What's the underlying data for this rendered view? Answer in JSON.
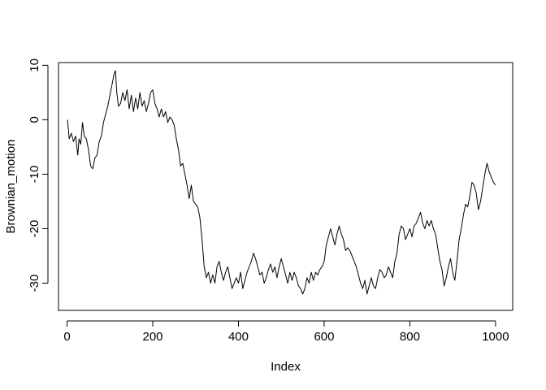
{
  "chart_data": {
    "type": "line",
    "title": "",
    "xlabel": "Index",
    "ylabel": "Brownian_motion",
    "xlim": [
      -20,
      1040
    ],
    "ylim": [
      -35,
      10.5
    ],
    "x_ticks": [
      0,
      200,
      400,
      600,
      800,
      1000
    ],
    "y_ticks": [
      10,
      0,
      -10,
      -20,
      -30
    ],
    "grid": false,
    "line_color": "#000000",
    "series": [
      {
        "points": [
          [
            1,
            0
          ],
          [
            5,
            -3.5
          ],
          [
            10,
            -2.5
          ],
          [
            15,
            -4
          ],
          [
            20,
            -3
          ],
          [
            25,
            -6.5
          ],
          [
            28,
            -3.5
          ],
          [
            32,
            -4.5
          ],
          [
            36,
            -0.5
          ],
          [
            40,
            -3
          ],
          [
            45,
            -3.5
          ],
          [
            50,
            -5.5
          ],
          [
            55,
            -8.5
          ],
          [
            60,
            -9
          ],
          [
            65,
            -7
          ],
          [
            70,
            -6.5
          ],
          [
            75,
            -4
          ],
          [
            80,
            -3
          ],
          [
            85,
            -0.5
          ],
          [
            90,
            1
          ],
          [
            95,
            2.5
          ],
          [
            100,
            4.5
          ],
          [
            105,
            6.5
          ],
          [
            110,
            8.5
          ],
          [
            113,
            9
          ],
          [
            116,
            5
          ],
          [
            120,
            2.5
          ],
          [
            125,
            3
          ],
          [
            130,
            5
          ],
          [
            135,
            3.5
          ],
          [
            140,
            5.5
          ],
          [
            145,
            2
          ],
          [
            150,
            4.5
          ],
          [
            155,
            1.5
          ],
          [
            160,
            4
          ],
          [
            165,
            2
          ],
          [
            170,
            5
          ],
          [
            175,
            2.5
          ],
          [
            180,
            3.5
          ],
          [
            185,
            1.5
          ],
          [
            190,
            3
          ],
          [
            195,
            5
          ],
          [
            200,
            5.5
          ],
          [
            205,
            3
          ],
          [
            210,
            2
          ],
          [
            215,
            0.5
          ],
          [
            220,
            2
          ],
          [
            225,
            0.5
          ],
          [
            230,
            1.5
          ],
          [
            235,
            -0.5
          ],
          [
            240,
            0.5
          ],
          [
            245,
            0
          ],
          [
            250,
            -1
          ],
          [
            255,
            -3.5
          ],
          [
            260,
            -5.5
          ],
          [
            265,
            -8.5
          ],
          [
            270,
            -8
          ],
          [
            275,
            -10
          ],
          [
            280,
            -12
          ],
          [
            285,
            -14.5
          ],
          [
            290,
            -12
          ],
          [
            295,
            -15
          ],
          [
            300,
            -15.5
          ],
          [
            305,
            -16
          ],
          [
            310,
            -18
          ],
          [
            315,
            -22
          ],
          [
            320,
            -27
          ],
          [
            325,
            -29
          ],
          [
            330,
            -28
          ],
          [
            335,
            -30
          ],
          [
            340,
            -28.5
          ],
          [
            345,
            -30
          ],
          [
            350,
            -27
          ],
          [
            355,
            -26
          ],
          [
            360,
            -28
          ],
          [
            365,
            -29.5
          ],
          [
            370,
            -28
          ],
          [
            375,
            -27
          ],
          [
            380,
            -29
          ],
          [
            385,
            -31
          ],
          [
            390,
            -30
          ],
          [
            395,
            -29
          ],
          [
            400,
            -30
          ],
          [
            405,
            -28
          ],
          [
            410,
            -31
          ],
          [
            415,
            -29.5
          ],
          [
            420,
            -28
          ],
          [
            425,
            -27
          ],
          [
            430,
            -26
          ],
          [
            435,
            -24.5
          ],
          [
            440,
            -25.5
          ],
          [
            445,
            -27
          ],
          [
            450,
            -28.5
          ],
          [
            455,
            -28
          ],
          [
            460,
            -30
          ],
          [
            465,
            -29
          ],
          [
            470,
            -27.5
          ],
          [
            475,
            -26.5
          ],
          [
            480,
            -28
          ],
          [
            485,
            -27
          ],
          [
            490,
            -29
          ],
          [
            495,
            -27
          ],
          [
            500,
            -25.5
          ],
          [
            505,
            -27
          ],
          [
            510,
            -28.5
          ],
          [
            515,
            -30
          ],
          [
            520,
            -28
          ],
          [
            525,
            -29.5
          ],
          [
            530,
            -28
          ],
          [
            535,
            -29
          ],
          [
            540,
            -30.5
          ],
          [
            545,
            -31
          ],
          [
            550,
            -32
          ],
          [
            555,
            -31
          ],
          [
            560,
            -29
          ],
          [
            565,
            -30
          ],
          [
            570,
            -28
          ],
          [
            575,
            -29.5
          ],
          [
            580,
            -28
          ],
          [
            585,
            -28.5
          ],
          [
            590,
            -27.5
          ],
          [
            595,
            -27
          ],
          [
            600,
            -26
          ],
          [
            605,
            -23
          ],
          [
            610,
            -21.5
          ],
          [
            615,
            -20
          ],
          [
            620,
            -21.5
          ],
          [
            625,
            -23
          ],
          [
            630,
            -21
          ],
          [
            635,
            -19.5
          ],
          [
            640,
            -21
          ],
          [
            645,
            -22
          ],
          [
            650,
            -24
          ],
          [
            655,
            -23.5
          ],
          [
            660,
            -24
          ],
          [
            665,
            -25
          ],
          [
            670,
            -26
          ],
          [
            675,
            -27
          ],
          [
            680,
            -28.5
          ],
          [
            685,
            -30
          ],
          [
            690,
            -31
          ],
          [
            695,
            -29.5
          ],
          [
            700,
            -32
          ],
          [
            705,
            -30.5
          ],
          [
            710,
            -29
          ],
          [
            715,
            -30.5
          ],
          [
            720,
            -31
          ],
          [
            725,
            -29
          ],
          [
            730,
            -27.5
          ],
          [
            735,
            -28
          ],
          [
            740,
            -29
          ],
          [
            745,
            -28.5
          ],
          [
            750,
            -27
          ],
          [
            755,
            -28
          ],
          [
            760,
            -29
          ],
          [
            765,
            -26
          ],
          [
            770,
            -24.5
          ],
          [
            775,
            -21
          ],
          [
            780,
            -19.5
          ],
          [
            785,
            -20
          ],
          [
            790,
            -22
          ],
          [
            795,
            -21
          ],
          [
            800,
            -20
          ],
          [
            805,
            -21.5
          ],
          [
            810,
            -19.5
          ],
          [
            815,
            -19
          ],
          [
            820,
            -18
          ],
          [
            825,
            -17
          ],
          [
            830,
            -19
          ],
          [
            835,
            -20
          ],
          [
            840,
            -18.5
          ],
          [
            845,
            -19.5
          ],
          [
            850,
            -18.5
          ],
          [
            855,
            -20
          ],
          [
            860,
            -21
          ],
          [
            865,
            -23.5
          ],
          [
            870,
            -26
          ],
          [
            875,
            -27.5
          ],
          [
            880,
            -30.5
          ],
          [
            885,
            -29
          ],
          [
            890,
            -27
          ],
          [
            895,
            -25.5
          ],
          [
            900,
            -28
          ],
          [
            905,
            -29.5
          ],
          [
            910,
            -26
          ],
          [
            915,
            -22
          ],
          [
            920,
            -20
          ],
          [
            925,
            -17.5
          ],
          [
            930,
            -15.5
          ],
          [
            935,
            -16
          ],
          [
            940,
            -14
          ],
          [
            945,
            -11.5
          ],
          [
            950,
            -12
          ],
          [
            955,
            -13.5
          ],
          [
            960,
            -16.5
          ],
          [
            965,
            -15
          ],
          [
            970,
            -12.5
          ],
          [
            975,
            -10
          ],
          [
            980,
            -8
          ],
          [
            985,
            -9.5
          ],
          [
            990,
            -10.5
          ],
          [
            995,
            -11.5
          ],
          [
            1000,
            -12
          ]
        ]
      }
    ]
  }
}
